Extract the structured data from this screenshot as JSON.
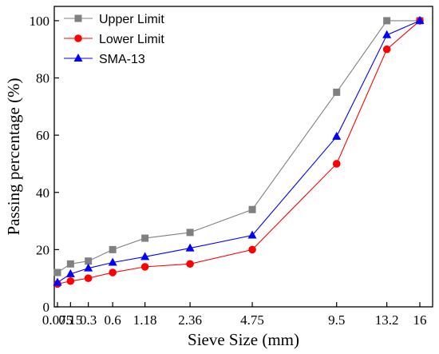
{
  "chart_data": {
    "type": "line",
    "xlabel": "Sieve Size (mm)",
    "ylabel": "Passing percentage (%)",
    "ylim": [
      0,
      105
    ],
    "yticks": [
      0,
      20,
      40,
      60,
      80,
      100
    ],
    "x_scale": "power 0.45",
    "x_ticks": [
      "0.075",
      "0.15",
      "0.3",
      "0.6",
      "1.18",
      "2.36",
      "4.75",
      "9.5",
      "13.2",
      "16"
    ],
    "x": [
      0.075,
      0.15,
      0.3,
      0.6,
      1.18,
      2.36,
      4.75,
      9.5,
      13.2,
      16
    ],
    "legend_position": "top-left",
    "series": [
      {
        "name": "Upper Limit",
        "color": "#808080",
        "marker": "square",
        "values": [
          12,
          15,
          16,
          20,
          24,
          26,
          34,
          75,
          100,
          100
        ]
      },
      {
        "name": "Lower Limit",
        "color": "#ff0000",
        "marker": "circle",
        "values": [
          8,
          9,
          10,
          12,
          14,
          15,
          20,
          50,
          90,
          100
        ]
      },
      {
        "name": "SMA-13",
        "color": "#0000ff",
        "marker": "triangle",
        "values": [
          8.5,
          11.5,
          13.5,
          15.5,
          17.5,
          20.5,
          25,
          59.5,
          95,
          100
        ]
      }
    ]
  }
}
